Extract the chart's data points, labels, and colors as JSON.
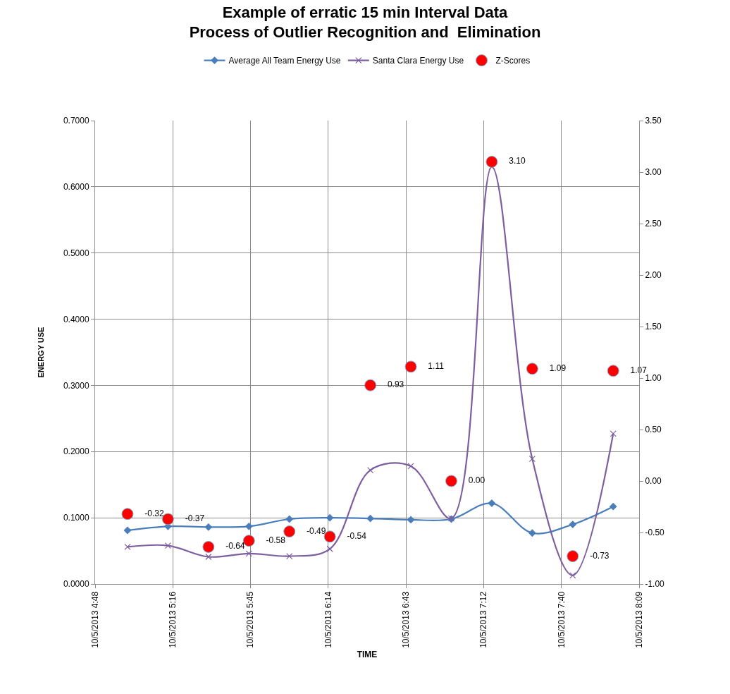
{
  "chart_data": {
    "type": "line",
    "title": "Example of erratic 15 min Interval Data\nProcess of Outlier Recognition and  Elimination",
    "xlabel": "TIME",
    "ylabel": "ENERGY USE",
    "x": [
      "2013-10-05T05:00",
      "2013-10-05T05:15",
      "2013-10-05T05:30",
      "2013-10-05T05:45",
      "2013-10-05T06:00",
      "2013-10-05T06:15",
      "2013-10-05T06:30",
      "2013-10-05T06:45",
      "2013-10-05T07:00",
      "2013-10-05T07:15",
      "2013-10-05T07:30",
      "2013-10-05T07:45",
      "2013-10-05T08:00"
    ],
    "series": [
      {
        "name": "Average All Team Energy Use",
        "color": "#4a7ebb",
        "marker": "diamond",
        "values": [
          0.081,
          0.087,
          0.086,
          0.087,
          0.098,
          0.1,
          0.099,
          0.097,
          0.098,
          0.122,
          0.077,
          0.09,
          0.117
        ]
      },
      {
        "name": "Santa Clara Energy Use",
        "color": "#7d5fa0",
        "marker": "cross",
        "values": [
          0.056,
          0.058,
          0.041,
          0.046,
          0.042,
          0.053,
          0.172,
          0.178,
          0.099,
          0.63,
          0.189,
          0.013,
          0.227
        ]
      },
      {
        "name": "Z-Scores",
        "type": "scatter",
        "axis": "y2",
        "color": "#ff0000",
        "marker": "circle",
        "values": [
          -0.32,
          -0.37,
          -0.64,
          -0.58,
          -0.49,
          -0.54,
          0.93,
          1.11,
          0.0,
          3.1,
          1.09,
          -0.73,
          1.07
        ],
        "value_labels": [
          "-0.32",
          "-0.37",
          "-0.64",
          "-0.58",
          "-0.49",
          "-0.54",
          "0.93",
          "1.11",
          "0.00",
          "3.10",
          "1.09",
          "-0.73",
          "1.07"
        ]
      }
    ],
    "xlim": [
      "2013-10-05T04:48",
      "2013-10-05T08:09:36"
    ],
    "xticks": [
      {
        "value": "2013-10-05T04:48",
        "label": "10/5/2013 4:48"
      },
      {
        "value": "2013-10-05T05:16:48",
        "label": "10/5/2013 5:16"
      },
      {
        "value": "2013-10-05T05:45:36",
        "label": "10/5/2013 5:45"
      },
      {
        "value": "2013-10-05T06:14:24",
        "label": "10/5/2013 6:14"
      },
      {
        "value": "2013-10-05T06:43:12",
        "label": "10/5/2013 6:43"
      },
      {
        "value": "2013-10-05T07:12",
        "label": "10/5/2013 7:12"
      },
      {
        "value": "2013-10-05T07:40:48",
        "label": "10/5/2013 7:40"
      },
      {
        "value": "2013-10-05T08:09:36",
        "label": "10/5/2013 8:09"
      }
    ],
    "ylim": [
      0,
      0.7
    ],
    "yticks": [
      {
        "value": 0,
        "label": "0.0000"
      },
      {
        "value": 0.1,
        "label": "0.1000"
      },
      {
        "value": 0.2,
        "label": "0.2000"
      },
      {
        "value": 0.3,
        "label": "0.3000"
      },
      {
        "value": 0.4,
        "label": "0.4000"
      },
      {
        "value": 0.5,
        "label": "0.5000"
      },
      {
        "value": 0.6,
        "label": "0.6000"
      },
      {
        "value": 0.7,
        "label": "0.7000"
      }
    ],
    "y2lim": [
      -1,
      3.5
    ],
    "y2ticks": [
      {
        "value": -1,
        "label": "-1.00"
      },
      {
        "value": -0.5,
        "label": "-0.50"
      },
      {
        "value": 0,
        "label": "0.00"
      },
      {
        "value": 0.5,
        "label": "0.50"
      },
      {
        "value": 1,
        "label": "1.00"
      },
      {
        "value": 1.5,
        "label": "1.50"
      },
      {
        "value": 2,
        "label": "2.00"
      },
      {
        "value": 2.5,
        "label": "2.50"
      },
      {
        "value": 3,
        "label": "3.00"
      },
      {
        "value": 3.5,
        "label": "3.50"
      }
    ],
    "grid": true,
    "legend": "top"
  }
}
